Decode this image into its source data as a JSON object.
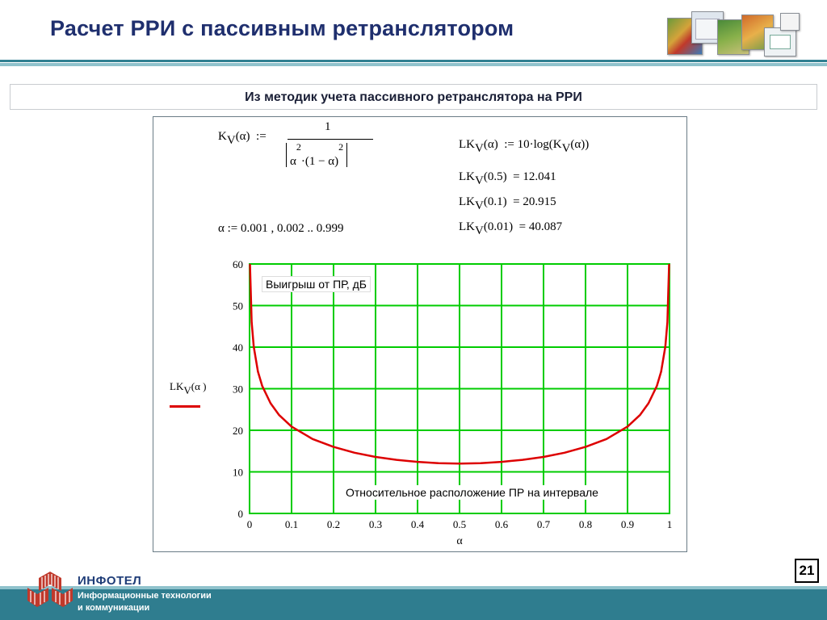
{
  "slide": {
    "title": "Расчет РРИ с пассивным ретранслятором",
    "subtitle": "Из методик учета пассивного ретранслятора на РРИ",
    "page_number": "21"
  },
  "worksheet": {
    "def_lhs": "K",
    "def_sub": "V",
    "def_arg": "(α)",
    "assign": ":=",
    "def_num": "1",
    "def_den_a": "α",
    "def_den_exp1": "2",
    "def_den_mid": "·(1 − α)",
    "def_den_exp2": "2",
    "range_def": "α := 0.001 , 0.002 .. 0.999",
    "lk_def_name": "LK",
    "lk_def_sub": "V",
    "lk_def_arg": "(α)",
    "lk_def_rhs": ":= 10·log(K",
    "lk_def_rhs_sub": "V",
    "lk_def_rhs_end": "(α))",
    "results": [
      {
        "name": "LK",
        "sub": "V",
        "arg": "(0.5)",
        "eq": "=",
        "value": "12.041"
      },
      {
        "name": "LK",
        "sub": "V",
        "arg": "(0.1)",
        "eq": "=",
        "value": "20.915"
      },
      {
        "name": "LK",
        "sub": "V",
        "arg": "(0.01)",
        "eq": "=",
        "value": "40.087"
      }
    ]
  },
  "footer": {
    "brand": "ИНФОТЕЛ",
    "line1": "Информационные технологии",
    "line2": "и коммуникации"
  },
  "colors": {
    "grid": "#00cc00",
    "curve": "#dd0000",
    "bottom_bar": "#2f7d8f",
    "title": "#1f2f6e"
  },
  "chart_data": {
    "type": "line",
    "xlabel": "α",
    "ylabel": "LK V(α)",
    "xlim": [
      0,
      1
    ],
    "ylim": [
      0,
      60
    ],
    "xticks": [
      "0",
      "0.1",
      "0.2",
      "0.3",
      "0.4",
      "0.5",
      "0.6",
      "0.7",
      "0.8",
      "0.9",
      "1"
    ],
    "yticks": [
      "0",
      "10",
      "20",
      "30",
      "40",
      "50",
      "60"
    ],
    "grid": true,
    "legend": {
      "label": "LK",
      "label_sub": "V",
      "label_arg": "(α )",
      "color": "#dd0000",
      "placement": "left"
    },
    "annotations": [
      "Выигрыш от ПР, дБ",
      "Относительное расположение ПР на интервале"
    ],
    "series": [
      {
        "color": "#dd0000",
        "x": [
          0.001,
          0.005,
          0.01,
          0.02,
          0.03,
          0.05,
          0.07,
          0.1,
          0.15,
          0.2,
          0.25,
          0.3,
          0.35,
          0.4,
          0.45,
          0.5,
          0.55,
          0.6,
          0.65,
          0.7,
          0.75,
          0.8,
          0.85,
          0.9,
          0.93,
          0.95,
          0.97,
          0.98,
          0.99,
          0.995,
          0.999
        ],
        "y": [
          60.0,
          46.0,
          40.1,
          34.1,
          30.7,
          26.5,
          23.7,
          20.9,
          17.9,
          16.0,
          14.6,
          13.6,
          12.9,
          12.4,
          12.1,
          12.0,
          12.1,
          12.4,
          12.9,
          13.6,
          14.6,
          16.0,
          17.9,
          20.9,
          23.7,
          26.5,
          30.7,
          34.1,
          40.1,
          46.0,
          60.0
        ]
      }
    ]
  }
}
